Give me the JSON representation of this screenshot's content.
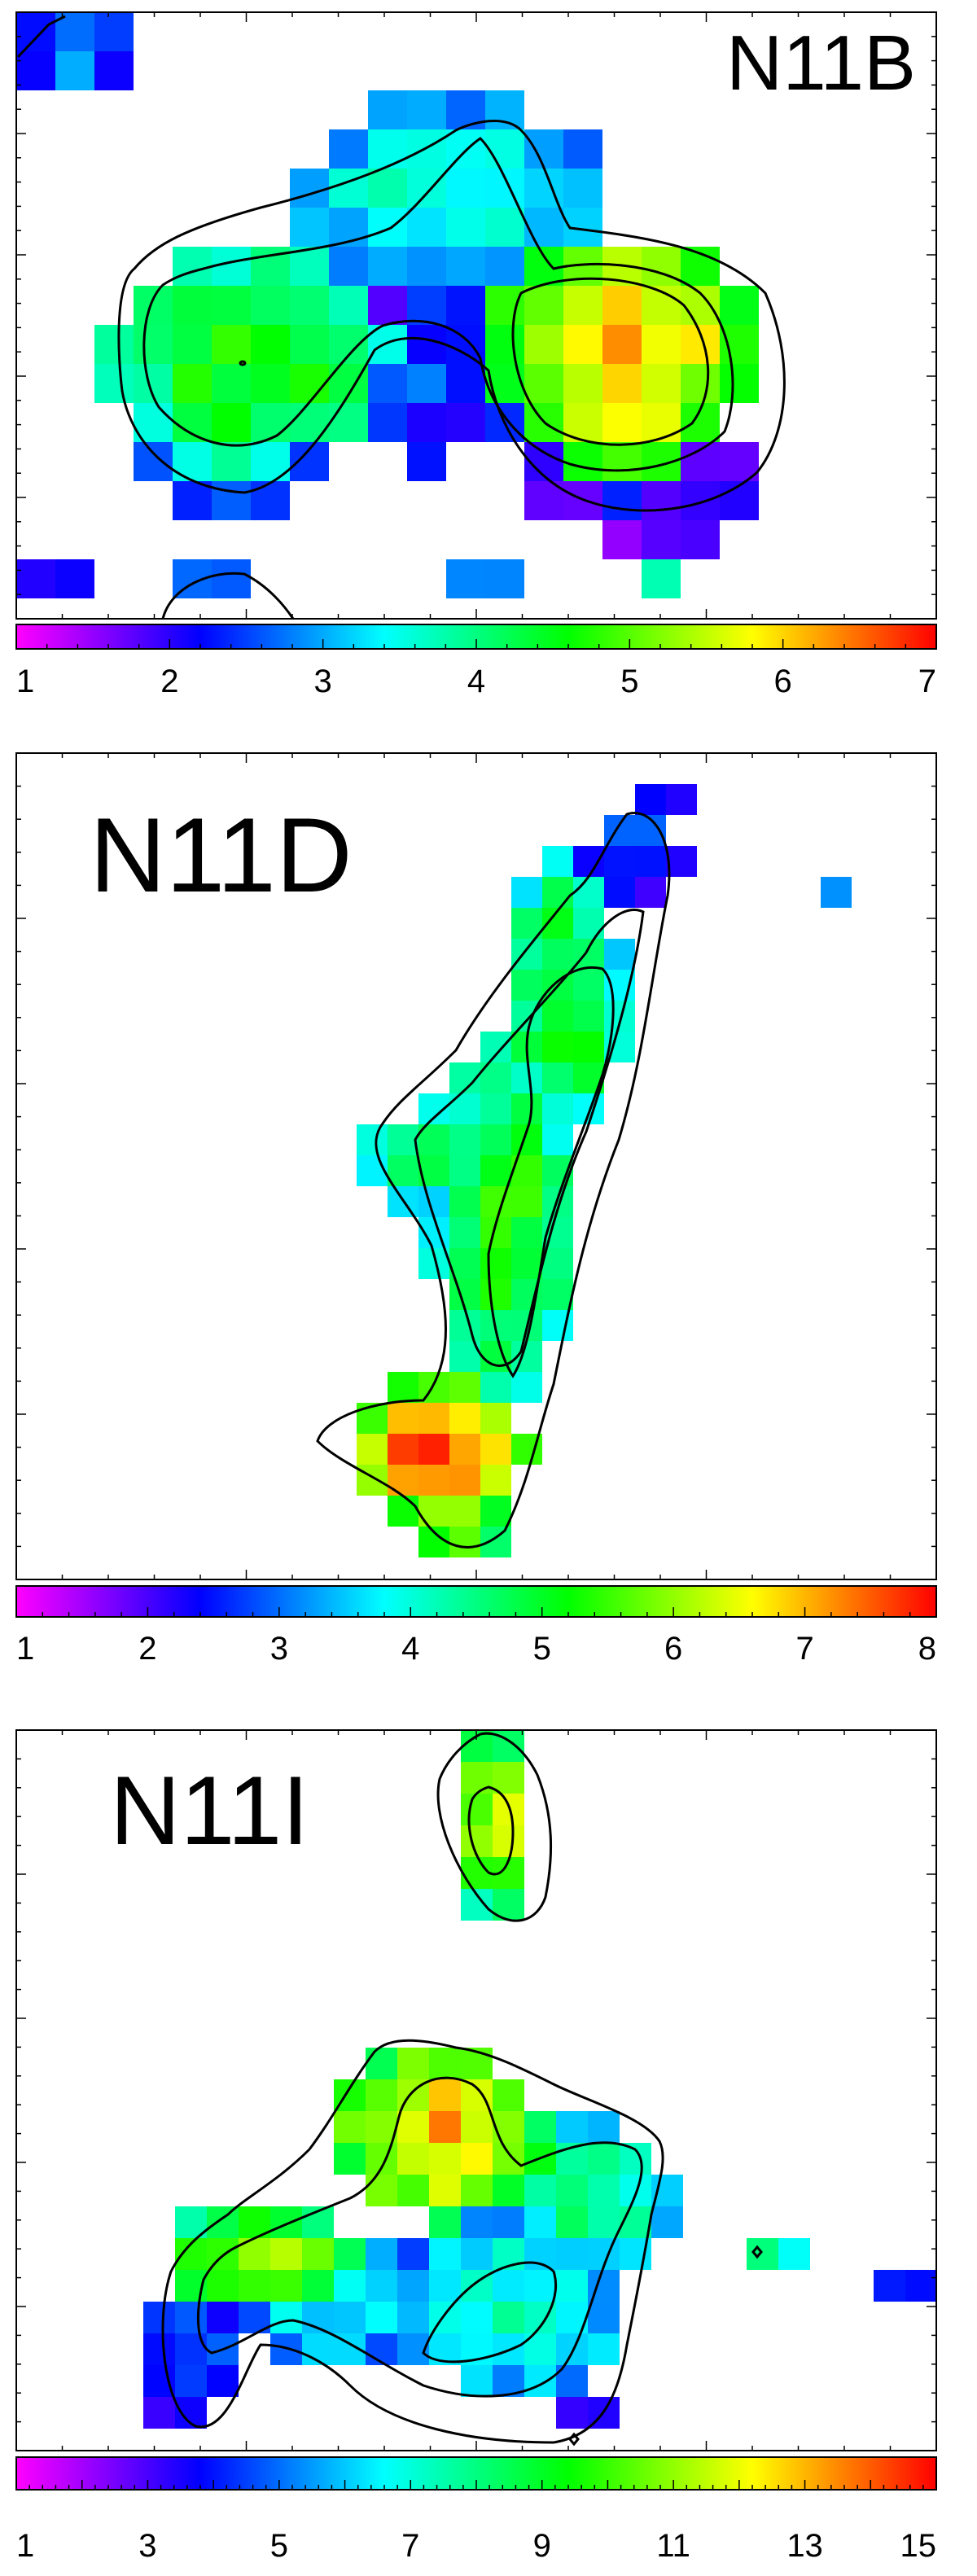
{
  "chart_data": [
    {
      "type": "heatmap",
      "title": "N11B",
      "colorbar": {
        "min": 1,
        "max": 7,
        "ticks": [
          "1",
          "2",
          "3",
          "4",
          "5",
          "6",
          "7"
        ]
      },
      "colormap": [
        "#ff00ff",
        "#0000ff",
        "#00ffff",
        "#00ff00",
        "#ffff00",
        "#ff0000"
      ],
      "contours": 3,
      "grid": false
    },
    {
      "type": "heatmap",
      "title": "N11D",
      "colorbar": {
        "min": 1,
        "max": 8,
        "ticks": [
          "1",
          "2",
          "3",
          "4",
          "5",
          "6",
          "7",
          "8"
        ]
      },
      "colormap": [
        "#ff00ff",
        "#0000ff",
        "#00ffff",
        "#00ff00",
        "#ffff00",
        "#ff0000"
      ],
      "contours": 3,
      "grid": false
    },
    {
      "type": "heatmap",
      "title": "N11I",
      "colorbar": {
        "min": 1,
        "max": 15,
        "ticks": [
          "1",
          "3",
          "5",
          "7",
          "9",
          "11",
          "13",
          "15"
        ]
      },
      "colormap": [
        "#ff00ff",
        "#0000ff",
        "#00ffff",
        "#00ff00",
        "#ffff00",
        "#ff0000"
      ],
      "contours": 3,
      "grid": false
    }
  ]
}
